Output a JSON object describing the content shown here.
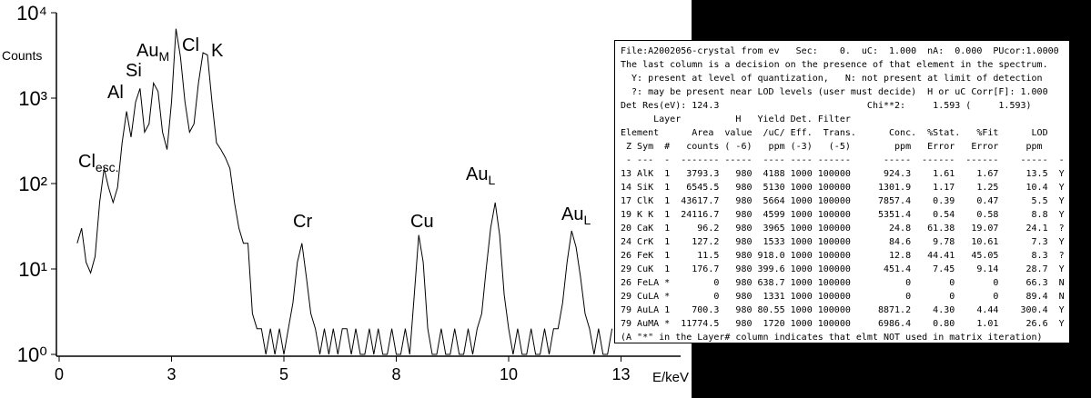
{
  "chart_data": {
    "type": "line",
    "y_label": "Counts",
    "x_label": "E/keV",
    "log_y": true,
    "color": "#000000",
    "x": [
      0.4,
      0.5,
      0.6,
      0.7,
      0.8,
      0.9,
      1.0,
      1.1,
      1.2,
      1.3,
      1.4,
      1.5,
      1.6,
      1.7,
      1.8,
      1.9,
      2.0,
      2.1,
      2.2,
      2.3,
      2.4,
      2.5,
      2.6,
      2.7,
      2.8,
      2.9,
      3.0,
      3.1,
      3.2,
      3.3,
      3.4,
      3.5,
      3.6,
      3.7,
      3.8,
      3.9,
      4.0,
      4.1,
      4.2,
      4.3,
      4.4,
      4.5,
      4.6,
      4.7,
      4.8,
      4.9,
      5.0,
      5.1,
      5.2,
      5.3,
      5.4,
      5.5,
      5.6,
      5.7,
      5.8,
      5.9,
      6.0,
      6.1,
      6.2,
      6.3,
      6.4,
      6.5,
      6.6,
      6.7,
      6.8,
      6.9,
      7.0,
      7.1,
      7.2,
      7.3,
      7.4,
      7.5,
      7.6,
      7.7,
      7.8,
      7.9,
      8.0,
      8.1,
      8.2,
      8.3,
      8.4,
      8.5,
      8.6,
      8.7,
      8.8,
      8.9,
      9.0,
      9.1,
      9.2,
      9.3,
      9.4,
      9.5,
      9.6,
      9.7,
      9.8,
      9.9,
      10.0,
      10.1,
      10.2,
      10.3,
      10.4,
      10.5,
      10.6,
      10.7,
      10.8,
      10.9,
      11.0,
      11.1,
      11.2,
      11.3,
      11.4,
      11.5,
      11.6,
      11.7,
      11.8,
      11.9,
      12.0,
      12.1,
      12.2,
      12.3
    ],
    "values": [
      20,
      30,
      12,
      9,
      14,
      60,
      150,
      90,
      60,
      90,
      300,
      700,
      350,
      900,
      1300,
      400,
      500,
      1500,
      1200,
      400,
      250,
      900,
      6500,
      3000,
      900,
      400,
      500,
      1500,
      3400,
      3200,
      900,
      300,
      250,
      200,
      150,
      60,
      30,
      20,
      20,
      3,
      2,
      2,
      1,
      2,
      1,
      2,
      1,
      2,
      4,
      12,
      20,
      8,
      3,
      2,
      1,
      2,
      1,
      2,
      1,
      2,
      2,
      1,
      2,
      1,
      1,
      2,
      1,
      2,
      1,
      1,
      2,
      1,
      1,
      2,
      1,
      5,
      25,
      12,
      2,
      1,
      1,
      2,
      1,
      1,
      2,
      1,
      1,
      2,
      1,
      2,
      3,
      10,
      30,
      60,
      25,
      5,
      2,
      1,
      2,
      1,
      1,
      2,
      1,
      1,
      2,
      1,
      2,
      2,
      4,
      12,
      28,
      18,
      8,
      3,
      2,
      1,
      2,
      1,
      1,
      2
    ],
    "xlim": [
      0,
      13.7
    ],
    "ylim": [
      1,
      10000
    ],
    "xticks": [
      0,
      {
        "value": 2.5,
        "label": "3"
      },
      5,
      {
        "value": 7.5,
        "label": "8"
      },
      10,
      {
        "value": 12.5,
        "label": "13"
      }
    ],
    "yticks": [
      {
        "value": 1,
        "label": "10⁰"
      },
      {
        "value": 10,
        "label": "10¹"
      },
      {
        "value": 100,
        "label": "10²"
      },
      {
        "value": 1000,
        "label": "10³"
      },
      {
        "value": 10000,
        "label": "10⁴"
      }
    ],
    "annotations": [
      {
        "text": "Cl",
        "sub": "esc."
      },
      {
        "text": "Al"
      },
      {
        "text": "Si"
      },
      {
        "text": "Au",
        "sub": "M"
      },
      {
        "text": "Cl"
      },
      {
        "text": "K"
      },
      {
        "text": "Cr"
      },
      {
        "text": "Cu"
      },
      {
        "text": "Au",
        "sub": "L"
      },
      {
        "text": "Au",
        "sub": "L"
      }
    ]
  },
  "report": {
    "lines": [
      "File:A2002056-crystal from ev   Sec:    0.  uC:  1.000  nA:  0.000  PUcor:1.0000",
      "The last column is a decision on the presence of that element in the spectrum.",
      "  Y: present at level of quantization,   N: not present at limit of detection",
      "  ?: may be present near LOD levels (user must decide)  H or uC Corr[F]: 1.000",
      "Det Res(eV): 124.3                           Chi**2:     1.593 (     1.593)",
      "      Layer          H   Yield Det. Filter",
      "Element      Area  value  /uC/ Eff.  Trans.      Conc.  %Stat.   %Fit      LOD",
      " Z Sym  #   counts ( -6)   ppm (-3)   (-5)        ppm   Error   Error     ppm",
      " - ---  -  ------- -----  ---- ---- ------      -----  ------  ------    -----  -",
      "13 AlK  1   3793.3   980  4188 1000 100000      924.3    1.61    1.67     13.5  Y",
      "14 SiK  1   6545.5   980  5130 1000 100000     1301.9    1.17    1.25     10.4  Y",
      "17 ClK  1  43617.7   980  5664 1000 100000     7857.4    0.39    0.47      5.5  Y",
      "19 K K  1  24116.7   980  4599 1000 100000     5351.4    0.54    0.58      8.8  Y",
      "20 CaK  1     96.2   980  3965 1000 100000       24.8   61.38   19.07     24.1  ?",
      "24 CrK  1    127.2   980  1533 1000 100000       84.6    9.78   10.61      7.3  Y",
      "26 FeK  1     11.5   980 918.0 1000 100000       12.8   44.41   45.05      8.3  ?",
      "29 CuK  1    176.7   980 399.6 1000 100000      451.4    7.45    9.14     28.7  Y",
      "26 FeLA *        0   980 638.7 1000 100000          0       0       0     66.3  N",
      "29 CuLA *        0   980  1331 1000 100000          0       0       0     89.4  N",
      "79 AuLA 1    700.3   980 80.55 1000 100000     8871.2    4.30    4.44    300.4  Y",
      "79 AuMA *  11774.5   980  1720 1000 100000     6986.4    0.80    1.01     26.6  Y",
      "(A \"*\" in the Layer# column indicates that elmt NOT used in matrix iteration)"
    ]
  }
}
